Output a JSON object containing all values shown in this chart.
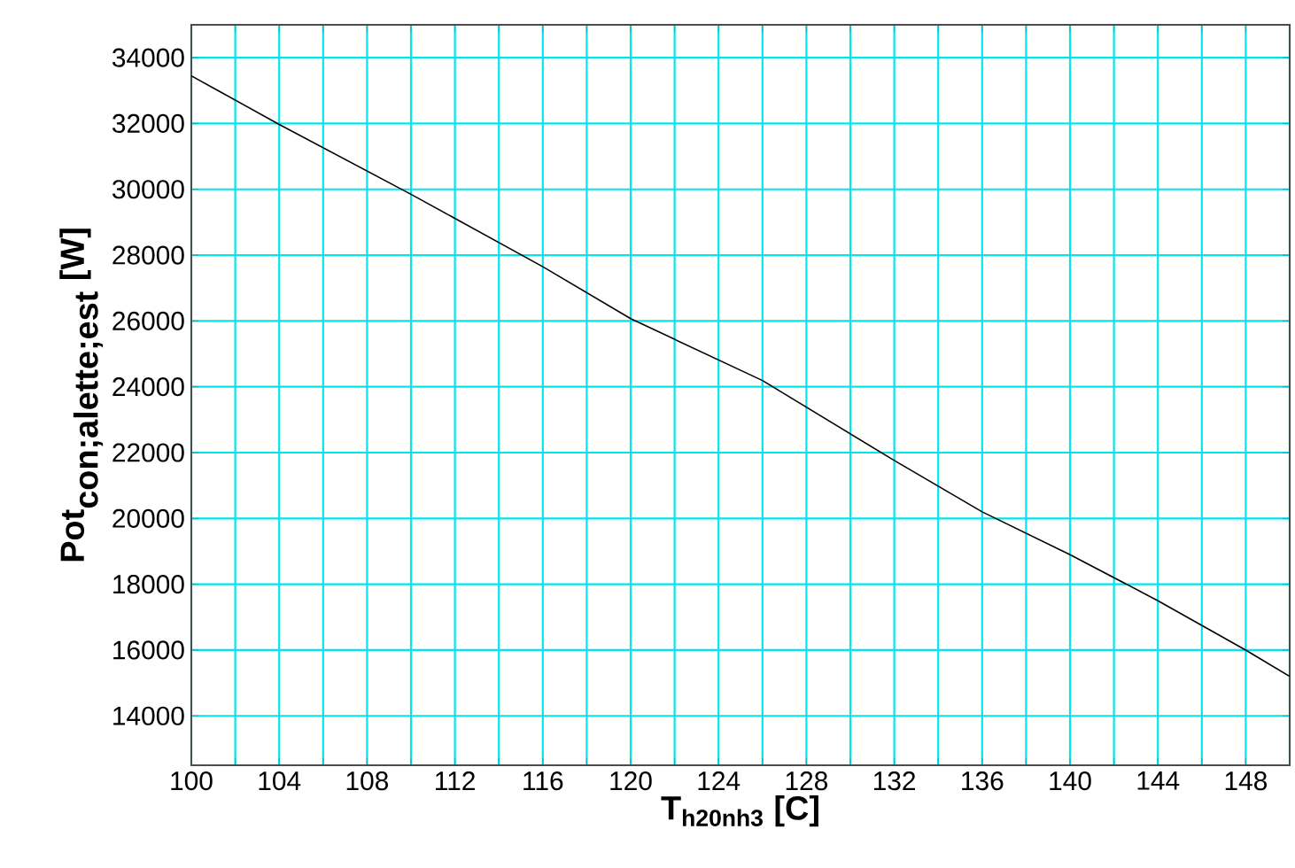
{
  "chart_data": {
    "type": "line",
    "xlabel": "T$_{h20nh3}$ [C]",
    "ylabel": "\\textbf{Pot}_{\\textbf{con;alette;est}}\\ \\textbf{[W]}",
    "x": [
      100,
      104,
      110,
      116,
      120,
      126,
      132,
      136,
      140,
      144,
      148,
      150
    ],
    "series": [
      {
        "color": "#000000",
        "values": [
          33450,
          31970,
          29850,
          27650,
          26070,
          24190,
          21760,
          20200,
          18900,
          17500,
          16000,
          15200
        ]
      }
    ],
    "xlim": [
      100,
      150
    ],
    "ylim": [
      12500,
      35000
    ],
    "xticks": [
      100,
      {
        "value": 102,
        "label": null
      },
      104,
      {
        "value": 106,
        "label": null
      },
      108,
      {
        "value": 110,
        "label": null
      },
      112,
      {
        "value": 114,
        "label": null
      },
      116,
      {
        "value": 118,
        "label": null
      },
      120,
      {
        "value": 122,
        "label": null
      },
      124,
      {
        "value": 126,
        "label": null
      },
      128,
      {
        "value": 130,
        "label": null
      },
      132,
      {
        "value": 134,
        "label": null
      },
      136,
      {
        "value": 138,
        "label": null
      },
      140,
      {
        "value": 142,
        "label": null
      },
      144,
      {
        "value": 146,
        "label": null
      },
      148,
      {
        "value": 150,
        "label": null
      }
    ],
    "yticks": [
      14000,
      16000,
      18000,
      20000,
      22000,
      24000,
      26000,
      28000,
      30000,
      32000,
      34000
    ],
    "grid": true,
    "line_style": "solid"
  }
}
